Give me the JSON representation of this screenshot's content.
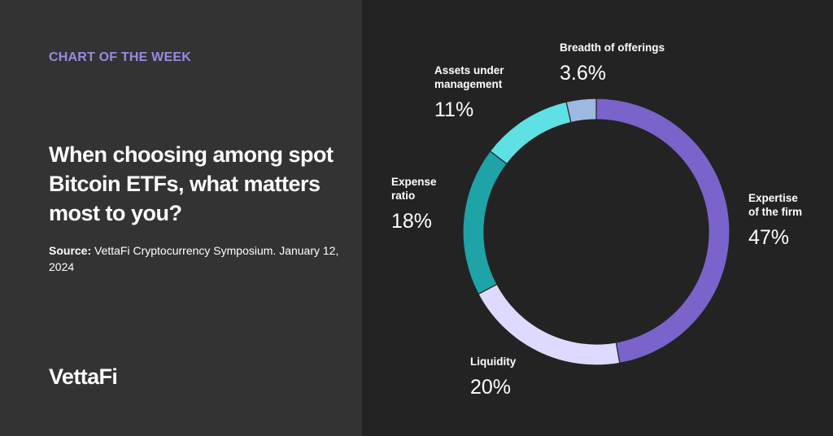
{
  "header": {
    "kicker": "CHART OF THE WEEK",
    "title": "When choosing among spot Bitcoin ETFs, what matters most to you?",
    "source_label": "Source:",
    "source_text": "VettaFi Cryptocurrency Symposium. January 12, 2024"
  },
  "brand": {
    "logo_text": "VettaFi"
  },
  "colors": {
    "left_background": "#333333",
    "right_background": "#232323",
    "accent": "#9b8ae0"
  },
  "chart_data": {
    "type": "pie",
    "subtype": "donut",
    "title": "When choosing among spot Bitcoin ETFs, what matters most to you?",
    "unit": "%",
    "start": "top",
    "direction": "clockwise",
    "slices": [
      {
        "label_lines": [
          "Expertise",
          "of the firm"
        ],
        "label": "Expertise of the firm",
        "value": 47,
        "display": "47%",
        "color": "#7a63cb"
      },
      {
        "label_lines": [
          "Liquidity"
        ],
        "label": "Liquidity",
        "value": 20,
        "display": "20%",
        "color": "#dedaff"
      },
      {
        "label_lines": [
          "Expense",
          "ratio"
        ],
        "label": "Expense ratio",
        "value": 18,
        "display": "18%",
        "color": "#1ea3a7"
      },
      {
        "label_lines": [
          "Assets under",
          "management"
        ],
        "label": "Assets under management",
        "value": 11,
        "display": "11%",
        "color": "#5ee0e4"
      },
      {
        "label_lines": [
          "Breadth of offerings"
        ],
        "label": "Breadth of offerings",
        "value": 3.6,
        "display": "3.6%",
        "color": "#9db9e2"
      }
    ]
  }
}
